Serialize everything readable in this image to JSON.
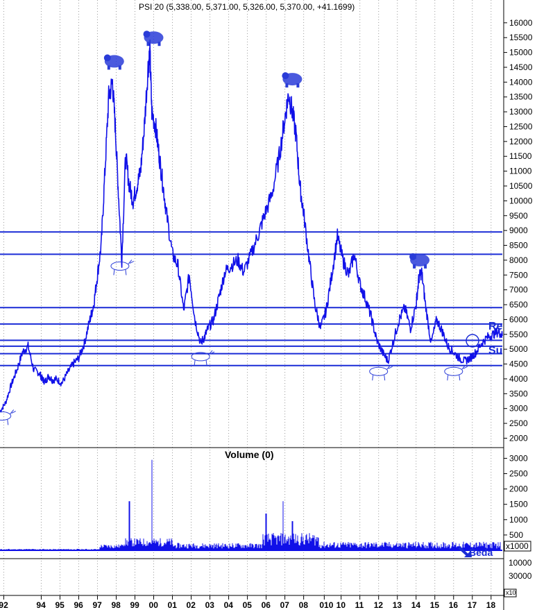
{
  "colors": {
    "series": "#1010e8",
    "lines": "#1a2bd6",
    "grid": "#9a9a9a",
    "background": "#ffffff",
    "icon": "#2a3cd8"
  },
  "chart_data": [
    {
      "type": "line",
      "title": "PSI 20 (5,338.00, 5,371.00, 5,326.00, 5,370.00, +41.1699)",
      "x_tick_labels": [
        "92",
        "94",
        "95",
        "96",
        "97",
        "98",
        "99",
        "00",
        "01",
        "02",
        "03",
        "04",
        "05",
        "06",
        "07",
        "08",
        "010",
        "10",
        "11",
        "12",
        "13",
        "14",
        "15",
        "16",
        "17",
        "18"
      ],
      "x_tick_years": [
        1992.2,
        1994.2,
        1995.2,
        1996.2,
        1997.2,
        1998.2,
        1999.2,
        2000.2,
        2001.2,
        2002.2,
        2003.2,
        2004.2,
        2005.2,
        2006.2,
        2007.2,
        2008.2,
        2009.3,
        2010.2,
        2011.2,
        2012.2,
        2013.2,
        2014.2,
        2015.2,
        2016.2,
        2017.2,
        2018.2
      ],
      "xlim": [
        1992.0,
        2018.8
      ],
      "ylim": [
        1800,
        16300
      ],
      "y_ticks": [
        2000,
        2500,
        3000,
        3500,
        4000,
        4500,
        5000,
        5500,
        6000,
        6500,
        7000,
        7500,
        8000,
        8500,
        9000,
        9500,
        10000,
        10500,
        11000,
        11500,
        12000,
        12500,
        13000,
        13500,
        14000,
        14500,
        15000,
        15500,
        16000
      ],
      "grid": "vertical dotted",
      "series": [
        {
          "x": [
            1992.0,
            1992.3,
            1992.6,
            1992.9,
            1993.2,
            1993.5,
            1993.8,
            1994.1,
            1994.25,
            1994.4,
            1994.6,
            1994.8,
            1995.0,
            1995.3,
            1995.6,
            1995.9,
            1996.2,
            1996.5,
            1996.8,
            1997.0,
            1997.2,
            1997.4,
            1997.6,
            1997.8,
            1998.0,
            1998.15,
            1998.3,
            1998.5,
            1998.7,
            1998.9,
            1999.1,
            1999.3,
            1999.5,
            1999.7,
            1999.9,
            2000.0,
            2000.1,
            2000.3,
            2000.5,
            2000.7,
            2000.9,
            2001.2,
            2001.5,
            2001.8,
            2002.1,
            2002.4,
            2002.7,
            2002.9,
            2003.1,
            2003.4,
            2003.7,
            2004.0,
            2004.3,
            2004.7,
            2005.0,
            2005.4,
            2005.8,
            2006.1,
            2006.5,
            2006.9,
            2007.2,
            2007.4,
            2007.6,
            2007.8,
            2008.0,
            2008.2,
            2008.5,
            2008.8,
            2009.1,
            2009.4,
            2009.7,
            2010.0,
            2010.3,
            2010.6,
            2010.9,
            2011.2,
            2011.5,
            2011.8,
            2012.1,
            2012.4,
            2012.7,
            2013.0,
            2013.3,
            2013.6,
            2013.9,
            2014.2,
            2014.35,
            2014.5,
            2014.7,
            2015.0,
            2015.3,
            2015.6,
            2015.9,
            2016.2,
            2016.5,
            2016.8,
            2017.1,
            2017.4,
            2017.7,
            2018.0,
            2018.3,
            2018.6,
            2018.8
          ],
          "y": [
            2900,
            3200,
            3800,
            4300,
            4900,
            5100,
            4300,
            4200,
            4000,
            3900,
            4100,
            3950,
            4000,
            3850,
            4200,
            4500,
            4700,
            5200,
            6000,
            6500,
            7500,
            8500,
            11000,
            13500,
            14000,
            12500,
            10500,
            8000,
            11500,
            10500,
            10000,
            10500,
            11000,
            12500,
            14500,
            15000,
            13000,
            12500,
            11500,
            10500,
            9500,
            8200,
            7800,
            6300,
            7500,
            6000,
            5200,
            5400,
            5700,
            6000,
            6800,
            7600,
            7800,
            8000,
            7600,
            8200,
            8900,
            9500,
            10200,
            11500,
            12800,
            13600,
            13000,
            12200,
            10500,
            9600,
            8000,
            6500,
            5700,
            6300,
            7500,
            8800,
            8000,
            7500,
            8200,
            7200,
            6700,
            6100,
            5300,
            4900,
            4600,
            5300,
            6000,
            6400,
            5700,
            6500,
            7400,
            7600,
            6500,
            5200,
            6000,
            5600,
            5100,
            4900,
            4700,
            4600,
            4700,
            4900,
            5200,
            5400,
            5500,
            5600,
            5450
          ]
        }
      ],
      "horizontal_lines": [
        8950,
        8200,
        6400,
        5850,
        5300,
        5100,
        4850,
        4450
      ],
      "text_labels": [
        "Re",
        "Su"
      ],
      "markers": [
        "bear",
        "bear",
        "bear",
        "bull",
        "bear",
        "bull",
        "bull",
        "bull",
        "bull"
      ]
    },
    {
      "type": "bar",
      "title": "Volume (0)",
      "x_tick_labels": [
        "92",
        "94",
        "95",
        "96",
        "97",
        "98",
        "99",
        "00",
        "01",
        "02",
        "03",
        "04",
        "05",
        "06",
        "07",
        "08",
        "010",
        "10",
        "11",
        "12",
        "13",
        "14",
        "15",
        "16",
        "17",
        "18"
      ],
      "ylim": [
        0,
        3100
      ],
      "y_ticks": [
        500,
        1000,
        1500,
        2000,
        2500,
        3000
      ],
      "unit": "x1000",
      "lower_y_tick": "30000",
      "lower_y_tick2": "10000",
      "lower_unit": "x10",
      "marker_text": "Beda",
      "spikes": [
        {
          "x": 1998.9,
          "value": 1600
        },
        {
          "x": 2000.1,
          "value": 2950
        },
        {
          "x": 2006.2,
          "value": 1200
        },
        {
          "x": 2007.1,
          "value": 1600
        },
        {
          "x": 2007.6,
          "value": 950
        }
      ]
    }
  ]
}
